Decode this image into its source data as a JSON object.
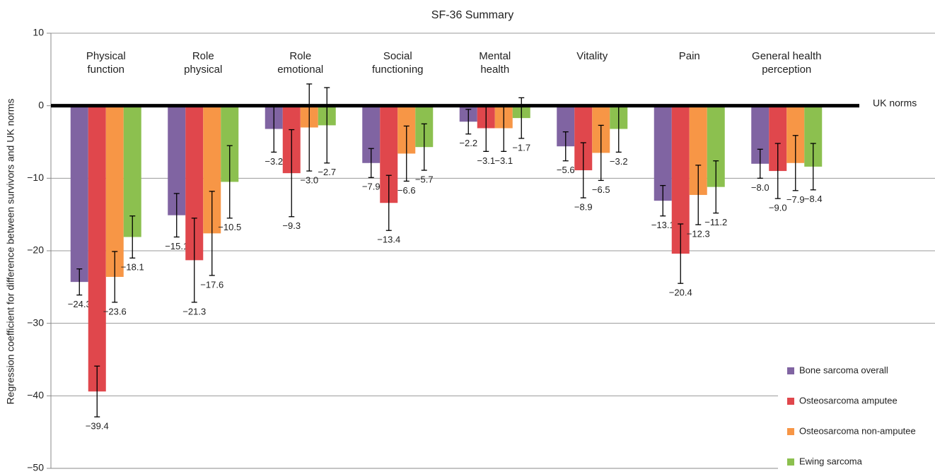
{
  "chart_data": {
    "type": "bar",
    "title": "SF-36 Summary",
    "y_label": "Regression coefficient for difference between survivors and UK norms",
    "annotation": "UK norms",
    "categories": [
      "Physical\nfunction",
      "Role\nphysical",
      "Role\nemotional",
      "Social\nfunctioning",
      "Mental\nhealth",
      "Vitality",
      "Pain",
      "General health\nperception"
    ],
    "series": [
      {
        "name": "Bone sarcoma overall",
        "color": "#8064a2",
        "values": [
          -24.3,
          -15.1,
          -3.2,
          -7.9,
          -2.2,
          -5.6,
          -13.1,
          -8.0
        ],
        "value_labels": [
          "−24.3",
          "−15.1",
          "−3.2",
          "−7.9",
          "−2.2",
          "−5.6",
          "−13.1",
          "−8.0"
        ],
        "errors": [
          1.8,
          3.0,
          3.2,
          2.0,
          1.7,
          2.0,
          2.1,
          2.0
        ]
      },
      {
        "name": "Osteosarcoma amputee",
        "color": "#e0474c",
        "values": [
          -39.4,
          -21.3,
          -9.3,
          -13.4,
          -3.1,
          -8.9,
          -20.4,
          -9.0
        ],
        "value_labels": [
          "−39.4",
          "−21.3",
          "−9.3",
          "−13.4",
          "−3.1",
          "−8.9",
          "−20.4",
          "−9.0"
        ],
        "errors": [
          3.5,
          5.8,
          6.0,
          3.8,
          3.2,
          3.8,
          4.1,
          3.8
        ]
      },
      {
        "name": "Osteosarcoma non-amputee",
        "color": "#f79646",
        "values": [
          -23.6,
          -17.6,
          -3.0,
          -6.6,
          -3.1,
          -6.5,
          -12.3,
          -7.9
        ],
        "value_labels": [
          "−23.6",
          "−17.6",
          "−3.0",
          "−6.6",
          "−3.1",
          "−6.5",
          "−12.3",
          "−7.9"
        ],
        "errors": [
          3.5,
          5.8,
          6.0,
          3.8,
          3.2,
          3.8,
          4.1,
          3.8
        ]
      },
      {
        "name": "Ewing sarcoma",
        "color": "#8cc04f",
        "values": [
          -18.1,
          -10.5,
          -2.7,
          -5.7,
          -1.7,
          -3.2,
          -11.2,
          -8.4
        ],
        "value_labels": [
          "−18.1",
          "−10.5",
          "−2.7",
          "−5.7",
          "−1.7",
          "−3.2",
          "−11.2",
          "−8.4"
        ],
        "errors": [
          2.9,
          5.0,
          5.2,
          3.2,
          2.8,
          3.2,
          3.6,
          3.2
        ]
      }
    ],
    "ylim": [
      -50,
      10
    ],
    "yticks": [
      {
        "value": -50,
        "label": "−50"
      },
      {
        "value": -40,
        "label": "−40"
      },
      {
        "value": -30,
        "label": "−30"
      },
      {
        "value": -20,
        "label": "−20"
      },
      {
        "value": -10,
        "label": "−10"
      },
      0,
      10
    ],
    "grid": true,
    "legend": "bottom-right"
  }
}
